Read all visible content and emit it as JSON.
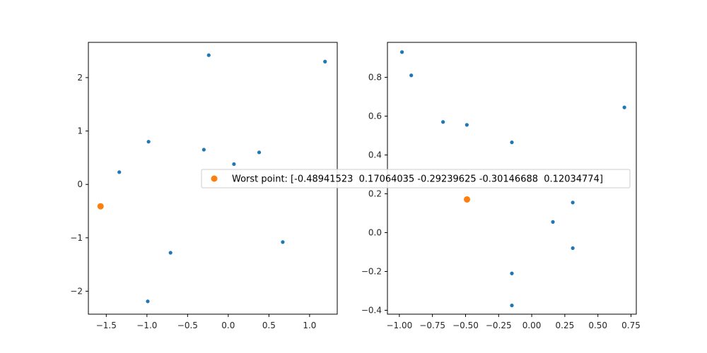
{
  "chart_data": [
    {
      "type": "scatter",
      "xlim": [
        -1.72,
        1.34
      ],
      "ylim": [
        -2.43,
        2.66
      ],
      "xticks": [
        -1.5,
        -1.0,
        -0.5,
        0.0,
        0.5,
        1.0
      ],
      "xtick_labels": [
        "−1.5",
        "−1.0",
        "−0.5",
        "0.0",
        "0.5",
        "1.0"
      ],
      "yticks": [
        -2,
        -1,
        0,
        1,
        2
      ],
      "ytick_labels": [
        "−2",
        "−1",
        "0",
        "1",
        "2"
      ],
      "grid": false,
      "series": [
        {
          "color": "#1f77b4",
          "marker_size": "small",
          "points": [
            {
              "x": -1.34,
              "y": 0.23
            },
            {
              "x": -0.98,
              "y": 0.8
            },
            {
              "x": -0.24,
              "y": 2.42
            },
            {
              "x": 1.19,
              "y": 2.3
            },
            {
              "x": -0.3,
              "y": 0.65
            },
            {
              "x": 0.38,
              "y": 0.6
            },
            {
              "x": 0.07,
              "y": 0.38
            },
            {
              "x": -0.71,
              "y": -1.28
            },
            {
              "x": 0.67,
              "y": -1.08
            },
            {
              "x": -0.99,
              "y": -2.19
            }
          ]
        },
        {
          "name": "Worst point: [-0.48941523  0.17064035 -0.29239625 -0.30146688  0.12034774]",
          "color": "#ff7f0e",
          "marker_size": "large",
          "points": [
            {
              "x": -1.57,
              "y": -0.41
            }
          ]
        }
      ]
    },
    {
      "type": "scatter",
      "xlim": [
        -1.09,
        0.79
      ],
      "ylim": [
        -0.42,
        0.98
      ],
      "xticks": [
        -1.0,
        -0.75,
        -0.5,
        -0.25,
        0.0,
        0.25,
        0.5,
        0.75
      ],
      "xtick_labels": [
        "−1.00",
        "−0.75",
        "−0.50",
        "−0.25",
        "0.00",
        "0.25",
        "0.50",
        "0.75"
      ],
      "yticks": [
        -0.4,
        -0.2,
        0.0,
        0.2,
        0.4,
        0.6,
        0.8
      ],
      "ytick_labels": [
        "−0.4",
        "−0.2",
        "0.0",
        "0.2",
        "0.4",
        "0.6",
        "0.8"
      ],
      "grid": false,
      "series": [
        {
          "color": "#1f77b4",
          "marker_size": "small",
          "points": [
            {
              "x": -0.98,
              "y": 0.93
            },
            {
              "x": -0.91,
              "y": 0.81
            },
            {
              "x": -0.67,
              "y": 0.57
            },
            {
              "x": -0.49,
              "y": 0.555
            },
            {
              "x": -0.15,
              "y": 0.465
            },
            {
              "x": 0.7,
              "y": 0.645
            },
            {
              "x": 0.31,
              "y": 0.155
            },
            {
              "x": 0.16,
              "y": 0.055
            },
            {
              "x": 0.31,
              "y": -0.08
            },
            {
              "x": -0.15,
              "y": -0.21
            },
            {
              "x": -0.15,
              "y": -0.375
            }
          ]
        },
        {
          "name": "Worst point: [-0.48941523  0.17064035 -0.29239625 -0.30146688  0.12034774]",
          "color": "#ff7f0e",
          "marker_size": "large",
          "points": [
            {
              "x": -0.489,
              "y": 0.171
            }
          ]
        }
      ]
    }
  ],
  "legend": {
    "label": "Worst point: [-0.48941523  0.17064035 -0.29239625 -0.30146688  0.12034774]",
    "marker_color": "#ff7f0e",
    "placement": "center, spanning both panels"
  }
}
